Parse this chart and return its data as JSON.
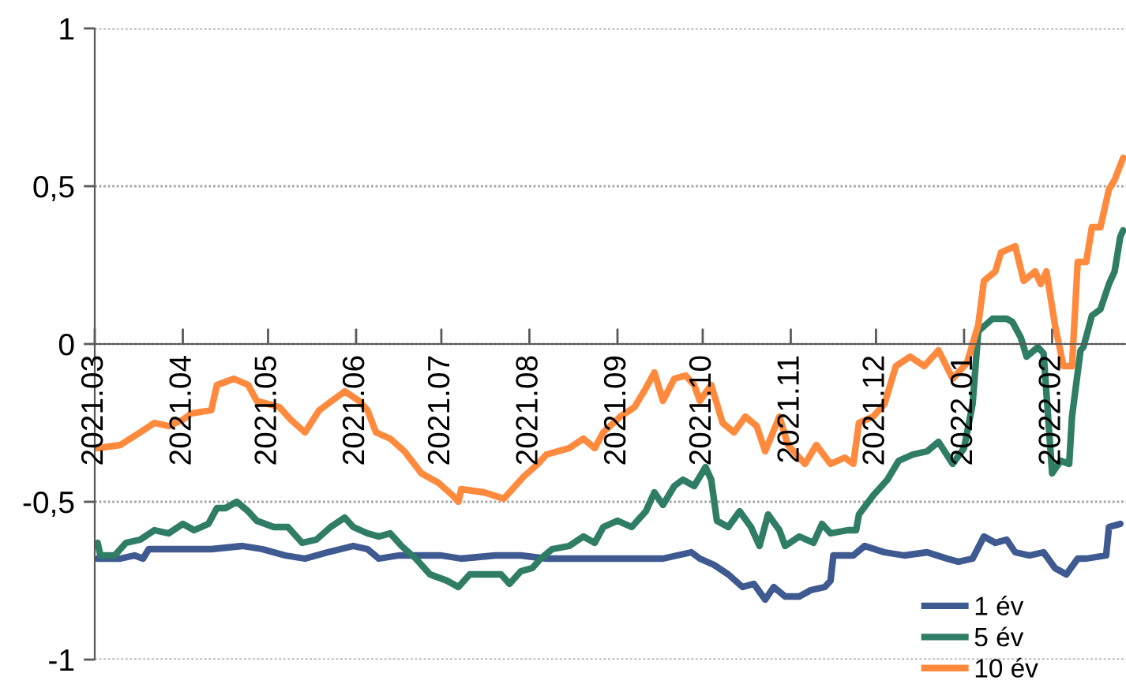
{
  "chart_data": {
    "type": "line",
    "xlim": [
      "2021-03-01",
      "2022-02-27"
    ],
    "xticks": [
      {
        "value": "2021-03-01",
        "label": "2021.03"
      },
      {
        "value": "2021-04-01",
        "label": "2021.04"
      },
      {
        "value": "2021-05-01",
        "label": "2021.05"
      },
      {
        "value": "2021-06-01",
        "label": "2021.06"
      },
      {
        "value": "2021-07-01",
        "label": "2021.07"
      },
      {
        "value": "2021-08-01",
        "label": "2021.08"
      },
      {
        "value": "2021-09-01",
        "label": "2021.09"
      },
      {
        "value": "2021-10-01",
        "label": "2021.10"
      },
      {
        "value": "2021-11-01",
        "label": "2021.11"
      },
      {
        "value": "2021-12-01",
        "label": "2021.12"
      },
      {
        "value": "2022-01-01",
        "label": "2022.01"
      },
      {
        "value": "2022-02-01",
        "label": "2022.02"
      }
    ],
    "ylim": [
      -1,
      1
    ],
    "yticks": [
      -1,
      {
        "value": -0.5,
        "label": "-0,5"
      },
      0,
      {
        "value": 0.5,
        "label": "0,5"
      },
      1
    ],
    "grid": "y",
    "legend": "bottom right",
    "series": [
      {
        "name": "1 év",
        "color": "#3e5a91",
        "x": [
          "2021-03-02",
          "2021-03-10",
          "2021-03-15",
          "2021-03-18",
          "2021-03-20",
          "2021-03-30",
          "2021-04-11",
          "2021-04-22",
          "2021-04-29",
          "2021-05-07",
          "2021-05-14",
          "2021-05-22",
          "2021-05-31",
          "2021-06-05",
          "2021-06-09",
          "2021-06-16",
          "2021-06-24",
          "2021-07-01",
          "2021-07-08",
          "2021-07-20",
          "2021-07-29",
          "2021-08-07",
          "2021-08-15",
          "2021-08-26",
          "2021-09-06",
          "2021-09-17",
          "2021-09-27",
          "2021-09-30",
          "2021-10-05",
          "2021-10-10",
          "2021-10-15",
          "2021-10-19",
          "2021-10-23",
          "2021-10-26",
          "2021-10-30",
          "2021-11-04",
          "2021-11-08",
          "2021-11-13",
          "2021-11-15",
          "2021-11-16",
          "2021-11-23",
          "2021-11-27",
          "2021-12-04",
          "2021-12-11",
          "2021-12-19",
          "2021-12-26",
          "2021-12-30",
          "2022-01-04",
          "2022-01-08",
          "2022-01-12",
          "2022-01-16",
          "2022-01-19",
          "2022-01-24",
          "2022-01-29",
          "2022-02-02",
          "2022-02-06",
          "2022-02-10",
          "2022-02-13",
          "2022-02-20",
          "2022-02-21",
          "2022-02-25"
        ],
        "values": [
          -0.68,
          -0.68,
          -0.67,
          -0.68,
          -0.65,
          -0.65,
          -0.65,
          -0.64,
          -0.65,
          -0.67,
          -0.68,
          -0.66,
          -0.64,
          -0.65,
          -0.68,
          -0.67,
          -0.67,
          -0.67,
          -0.68,
          -0.67,
          -0.67,
          -0.68,
          -0.68,
          -0.68,
          -0.68,
          -0.68,
          -0.66,
          -0.68,
          -0.7,
          -0.73,
          -0.77,
          -0.76,
          -0.81,
          -0.77,
          -0.8,
          -0.8,
          -0.78,
          -0.77,
          -0.75,
          -0.67,
          -0.67,
          -0.64,
          -0.66,
          -0.67,
          -0.66,
          -0.68,
          -0.69,
          -0.68,
          -0.61,
          -0.63,
          -0.62,
          -0.66,
          -0.67,
          -0.66,
          -0.71,
          -0.73,
          -0.68,
          -0.68,
          -0.67,
          -0.58,
          -0.57
        ]
      },
      {
        "name": "5 év",
        "color": "#2e7d64",
        "x": [
          "2021-03-02",
          "2021-03-03",
          "2021-03-08",
          "2021-03-12",
          "2021-03-17",
          "2021-03-22",
          "2021-03-27",
          "2021-04-01",
          "2021-04-05",
          "2021-04-10",
          "2021-04-13",
          "2021-04-16",
          "2021-04-20",
          "2021-04-24",
          "2021-04-27",
          "2021-05-03",
          "2021-05-08",
          "2021-05-13",
          "2021-05-18",
          "2021-05-23",
          "2021-05-28",
          "2021-05-31",
          "2021-06-05",
          "2021-06-09",
          "2021-06-13",
          "2021-06-17",
          "2021-06-22",
          "2021-06-27",
          "2021-07-03",
          "2021-07-07",
          "2021-07-11",
          "2021-07-16",
          "2021-07-22",
          "2021-07-25",
          "2021-07-29",
          "2021-08-02",
          "2021-08-05",
          "2021-08-09",
          "2021-08-15",
          "2021-08-20",
          "2021-08-24",
          "2021-08-27",
          "2021-09-01",
          "2021-09-06",
          "2021-09-11",
          "2021-09-14",
          "2021-09-17",
          "2021-09-21",
          "2021-09-24",
          "2021-09-28",
          "2021-10-02",
          "2021-10-04",
          "2021-10-06",
          "2021-10-10",
          "2021-10-14",
          "2021-10-18",
          "2021-10-21",
          "2021-10-24",
          "2021-10-28",
          "2021-10-30",
          "2021-11-04",
          "2021-11-09",
          "2021-11-12",
          "2021-11-15",
          "2021-11-21",
          "2021-11-24",
          "2021-11-25",
          "2021-11-30",
          "2021-12-05",
          "2021-12-09",
          "2021-12-14",
          "2021-12-19",
          "2021-12-23",
          "2021-12-28",
          "2022-01-01",
          "2022-01-04",
          "2022-01-06",
          "2022-01-11",
          "2022-01-16",
          "2022-01-18",
          "2022-01-21",
          "2022-01-23",
          "2022-01-27",
          "2022-01-29",
          "2022-02-01",
          "2022-02-04",
          "2022-02-07",
          "2022-02-08",
          "2022-02-11",
          "2022-02-12",
          "2022-02-15",
          "2022-02-18",
          "2022-02-21",
          "2022-02-23",
          "2022-02-25",
          "2022-02-26"
        ],
        "values": [
          -0.63,
          -0.67,
          -0.67,
          -0.63,
          -0.62,
          -0.59,
          -0.6,
          -0.57,
          -0.59,
          -0.57,
          -0.52,
          -0.52,
          -0.5,
          -0.53,
          -0.56,
          -0.58,
          -0.58,
          -0.63,
          -0.62,
          -0.58,
          -0.55,
          -0.58,
          -0.6,
          -0.61,
          -0.6,
          -0.64,
          -0.68,
          -0.73,
          -0.75,
          -0.77,
          -0.73,
          -0.73,
          -0.73,
          -0.76,
          -0.72,
          -0.71,
          -0.68,
          -0.65,
          -0.64,
          -0.61,
          -0.63,
          -0.58,
          -0.56,
          -0.58,
          -0.53,
          -0.47,
          -0.51,
          -0.45,
          -0.43,
          -0.45,
          -0.39,
          -0.43,
          -0.56,
          -0.58,
          -0.53,
          -0.58,
          -0.64,
          -0.54,
          -0.59,
          -0.64,
          -0.61,
          -0.63,
          -0.57,
          -0.6,
          -0.59,
          -0.59,
          -0.54,
          -0.48,
          -0.43,
          -0.37,
          -0.35,
          -0.34,
          -0.31,
          -0.38,
          -0.33,
          -0.19,
          0.04,
          0.08,
          0.08,
          0.07,
          0.02,
          -0.04,
          -0.01,
          -0.03,
          -0.41,
          -0.37,
          -0.38,
          -0.23,
          -0.02,
          -0.01,
          0.09,
          0.11,
          0.19,
          0.23,
          0.34,
          0.36
        ]
      },
      {
        "name": "10 év",
        "color": "#ff8a3d",
        "x": [
          "2021-03-02",
          "2021-03-10",
          "2021-03-17",
          "2021-03-22",
          "2021-03-27",
          "2021-04-01",
          "2021-04-04",
          "2021-04-11",
          "2021-04-13",
          "2021-04-19",
          "2021-04-24",
          "2021-04-27",
          "2021-05-05",
          "2021-05-09",
          "2021-05-14",
          "2021-05-19",
          "2021-05-25",
          "2021-05-28",
          "2021-06-02",
          "2021-06-05",
          "2021-06-08",
          "2021-06-13",
          "2021-06-18",
          "2021-06-24",
          "2021-06-30",
          "2021-07-05",
          "2021-07-07",
          "2021-07-08",
          "2021-07-16",
          "2021-07-23",
          "2021-07-26",
          "2021-07-30",
          "2021-08-04",
          "2021-08-07",
          "2021-08-15",
          "2021-08-20",
          "2021-08-24",
          "2021-08-27",
          "2021-09-02",
          "2021-09-07",
          "2021-09-11",
          "2021-09-14",
          "2021-09-17",
          "2021-09-21",
          "2021-09-25",
          "2021-09-28",
          "2021-09-30",
          "2021-10-04",
          "2021-10-08",
          "2021-10-12",
          "2021-10-16",
          "2021-10-20",
          "2021-10-23",
          "2021-10-28",
          "2021-10-31",
          "2021-11-06",
          "2021-11-10",
          "2021-11-15",
          "2021-11-20",
          "2021-11-23",
          "2021-11-25",
          "2021-11-30",
          "2021-12-04",
          "2021-12-08",
          "2021-12-13",
          "2021-12-18",
          "2021-12-23",
          "2021-12-28",
          "2022-01-02",
          "2022-01-06",
          "2022-01-08",
          "2022-01-12",
          "2022-01-14",
          "2022-01-19",
          "2022-01-22",
          "2022-01-26",
          "2022-01-28",
          "2022-01-30",
          "2022-02-02",
          "2022-02-05",
          "2022-02-08",
          "2022-02-10",
          "2022-02-13",
          "2022-02-15",
          "2022-02-18",
          "2022-02-21",
          "2022-02-23",
          "2022-02-26"
        ],
        "values": [
          -0.33,
          -0.32,
          -0.28,
          -0.25,
          -0.26,
          -0.24,
          -0.22,
          -0.21,
          -0.13,
          -0.11,
          -0.13,
          -0.18,
          -0.2,
          -0.24,
          -0.28,
          -0.21,
          -0.17,
          -0.15,
          -0.18,
          -0.21,
          -0.28,
          -0.3,
          -0.34,
          -0.41,
          -0.44,
          -0.48,
          -0.5,
          -0.46,
          -0.47,
          -0.49,
          -0.46,
          -0.42,
          -0.38,
          -0.35,
          -0.33,
          -0.3,
          -0.33,
          -0.28,
          -0.23,
          -0.2,
          -0.14,
          -0.09,
          -0.18,
          -0.11,
          -0.1,
          -0.13,
          -0.18,
          -0.13,
          -0.25,
          -0.28,
          -0.23,
          -0.26,
          -0.34,
          -0.23,
          -0.32,
          -0.38,
          -0.32,
          -0.38,
          -0.36,
          -0.38,
          -0.25,
          -0.23,
          -0.19,
          -0.07,
          -0.04,
          -0.07,
          -0.02,
          -0.11,
          -0.06,
          0.06,
          0.2,
          0.23,
          0.29,
          0.31,
          0.2,
          0.23,
          0.19,
          0.23,
          0.06,
          -0.07,
          -0.07,
          0.26,
          0.26,
          0.37,
          0.37,
          0.49,
          0.52,
          0.59
        ]
      }
    ]
  }
}
